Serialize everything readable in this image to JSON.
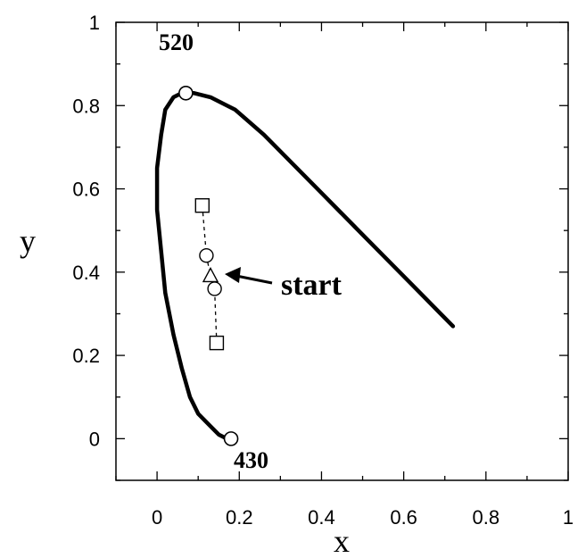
{
  "chart_data": {
    "type": "line",
    "title": "",
    "xlabel": "x",
    "ylabel": "y",
    "xlim": [
      -0.1,
      1.0
    ],
    "ylim": [
      -0.1,
      1.0
    ],
    "xticks": [
      "0",
      "0.2",
      "0.4",
      "0.6",
      "0.8",
      "1"
    ],
    "yticks": [
      "0",
      "0.2",
      "0.4",
      "0.6",
      "0.8",
      "1"
    ],
    "xtick_values": [
      0,
      0.2,
      0.4,
      0.6,
      0.8,
      1.0
    ],
    "ytick_values": [
      0,
      0.2,
      0.4,
      0.6,
      0.8,
      1.0
    ],
    "grid": false,
    "series": [
      {
        "style": "thick-solid-line",
        "x": [
          0.72,
          0.69,
          0.62,
          0.55,
          0.48,
          0.4,
          0.33,
          0.26,
          0.19,
          0.13,
          0.09,
          0.06,
          0.04,
          0.02,
          0.01,
          0.0,
          0.0,
          0.01,
          0.02,
          0.04,
          0.06,
          0.08,
          0.1,
          0.13,
          0.15,
          0.17
        ],
        "y": [
          0.27,
          0.3,
          0.37,
          0.44,
          0.51,
          0.59,
          0.66,
          0.73,
          0.79,
          0.82,
          0.83,
          0.83,
          0.82,
          0.79,
          0.73,
          0.65,
          0.55,
          0.45,
          0.35,
          0.25,
          0.17,
          0.1,
          0.06,
          0.03,
          0.01,
          0.0
        ]
      },
      {
        "style": "dashed-line-markers",
        "x": [
          0.11,
          0.12,
          0.13,
          0.14,
          0.145
        ],
        "y": [
          0.56,
          0.44,
          0.39,
          0.36,
          0.23
        ],
        "markers": [
          "square",
          "circle",
          "triangle",
          "circle",
          "square"
        ]
      }
    ],
    "endpoints": [
      {
        "x": 0.07,
        "y": 0.83,
        "label": "520"
      },
      {
        "x": 0.18,
        "y": 0.0,
        "label": "430"
      }
    ],
    "annotations": [
      {
        "text": "start",
        "x": 0.3,
        "y": 0.38,
        "arrow_to": [
          0.16,
          0.39
        ]
      }
    ]
  }
}
